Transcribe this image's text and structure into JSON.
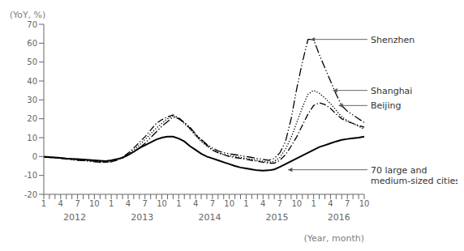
{
  "chart_data": {
    "type": "line",
    "xlabel": "(Year, month)",
    "ylabel": "(YoY, %)",
    "categories": [
      "1",
      null,
      null,
      "4",
      null,
      null,
      "7",
      null,
      null,
      "10",
      null,
      null,
      "1",
      null,
      null,
      "4",
      null,
      null,
      "7",
      null,
      null,
      "10",
      null,
      null,
      "1",
      null,
      null,
      "4",
      null,
      null,
      "7",
      null,
      null,
      "10",
      null,
      null,
      "1",
      null,
      null,
      "4",
      null,
      null,
      "7",
      null,
      null,
      "10",
      null,
      null,
      "1",
      null,
      null,
      "4",
      null,
      null,
      "7",
      null,
      null,
      "10"
    ],
    "category_groups": [
      {
        "label": "2012",
        "size": 12
      },
      {
        "label": "2013",
        "size": 12
      },
      {
        "label": "2014",
        "size": 12
      },
      {
        "label": "2015",
        "size": 12
      },
      {
        "label": "2016",
        "size": 10
      }
    ],
    "series": [
      {
        "name": "70 large and\nmedium-sized cities",
        "color": "#000000",
        "line_style": "solid",
        "values": [
          -0.1,
          -0.3,
          -0.5,
          -0.7,
          -1.0,
          -1.2,
          -1.4,
          -1.6,
          -1.8,
          -2.0,
          -2.2,
          -2.4,
          -2.0,
          -1.4,
          -0.6,
          0.8,
          2.5,
          4.5,
          6.0,
          7.5,
          9.0,
          10.0,
          10.5,
          10.5,
          9.5,
          8.0,
          5.5,
          3.5,
          1.5,
          0.0,
          -1.0,
          -2.0,
          -3.0,
          -4.0,
          -5.0,
          -5.8,
          -6.3,
          -6.8,
          -7.3,
          -7.5,
          -7.3,
          -6.8,
          -5.5,
          -4.0,
          -2.5,
          -1.0,
          0.5,
          2.0,
          3.5,
          5.0,
          6.0,
          7.0,
          8.0,
          8.8,
          9.3,
          9.7,
          10.0,
          10.5
        ]
      },
      {
        "name": "Beijing",
        "color": "#000000",
        "line_style": "dashdot",
        "values": [
          -0.2,
          -0.4,
          -0.6,
          -0.9,
          -1.1,
          -1.4,
          -1.7,
          -1.9,
          -2.2,
          -2.4,
          -2.7,
          -3.0,
          -2.4,
          -1.5,
          -0.3,
          1.8,
          4.5,
          7.5,
          10.5,
          14.0,
          17.5,
          19.5,
          21.0,
          22.0,
          20.5,
          18.0,
          15.0,
          11.5,
          8.5,
          6.0,
          3.5,
          2.0,
          1.0,
          0.0,
          -0.5,
          -1.0,
          -1.5,
          -2.0,
          -2.5,
          -3.0,
          -3.5,
          -3.5,
          -2.0,
          1.0,
          5.5,
          10.5,
          16.5,
          22.5,
          27.0,
          28.5,
          27.5,
          25.5,
          22.5,
          20.0,
          18.5,
          17.5,
          16.5,
          15.5
        ]
      },
      {
        "name": "Shanghai",
        "color": "#000000",
        "line_style": "dotted",
        "values": [
          -0.2,
          -0.4,
          -0.6,
          -0.8,
          -1.1,
          -1.4,
          -1.7,
          -2.0,
          -2.2,
          -2.5,
          -2.7,
          -3.0,
          -2.4,
          -1.6,
          -0.6,
          1.2,
          3.5,
          6.0,
          9.0,
          12.0,
          15.0,
          17.5,
          20.0,
          21.5,
          20.0,
          17.5,
          14.5,
          11.0,
          8.0,
          5.5,
          3.5,
          2.0,
          1.0,
          0.5,
          0.0,
          -0.5,
          -1.0,
          -1.5,
          -2.0,
          -2.5,
          -3.0,
          -2.5,
          -0.5,
          4.0,
          10.0,
          18.0,
          26.0,
          33.0,
          35.0,
          33.5,
          31.0,
          28.0,
          24.5,
          21.0,
          19.0,
          17.5,
          16.0,
          14.5
        ]
      },
      {
        "name": "Shenzhen",
        "color": "#000000",
        "line_style": "dashdotdot",
        "values": [
          -0.3,
          -0.5,
          -0.8,
          -1.0,
          -1.3,
          -1.8,
          -2.0,
          -2.2,
          -2.5,
          -2.8,
          -3.0,
          -3.2,
          -2.8,
          -2.0,
          -0.8,
          0.8,
          2.5,
          4.5,
          7.0,
          10.0,
          13.0,
          16.0,
          18.5,
          21.0,
          20.0,
          18.0,
          15.5,
          12.0,
          9.0,
          6.5,
          4.5,
          3.0,
          2.0,
          1.5,
          1.0,
          0.5,
          0.0,
          -0.5,
          -1.0,
          -1.5,
          -2.0,
          -1.0,
          2.0,
          8.0,
          20.0,
          36.0,
          50.0,
          62.0,
          62.0,
          54.0,
          47.0,
          40.0,
          33.0,
          27.0,
          24.0,
          22.0,
          20.0,
          18.0
        ]
      }
    ],
    "ylim": [
      -20,
      70
    ],
    "yticks": [
      -20,
      -10,
      0,
      10,
      20,
      30,
      40,
      50,
      60,
      70
    ],
    "grid": false,
    "annotations": [
      {
        "text": "Shenzhen",
        "x": 47,
        "y": 62
      },
      {
        "text": "Shanghai",
        "x": 51,
        "y": 35
      },
      {
        "text": "Beijing",
        "x": 52,
        "y": 27
      },
      {
        "text": "70 large and\nmedium-sized cities",
        "x": 43,
        "y": -7
      }
    ]
  }
}
